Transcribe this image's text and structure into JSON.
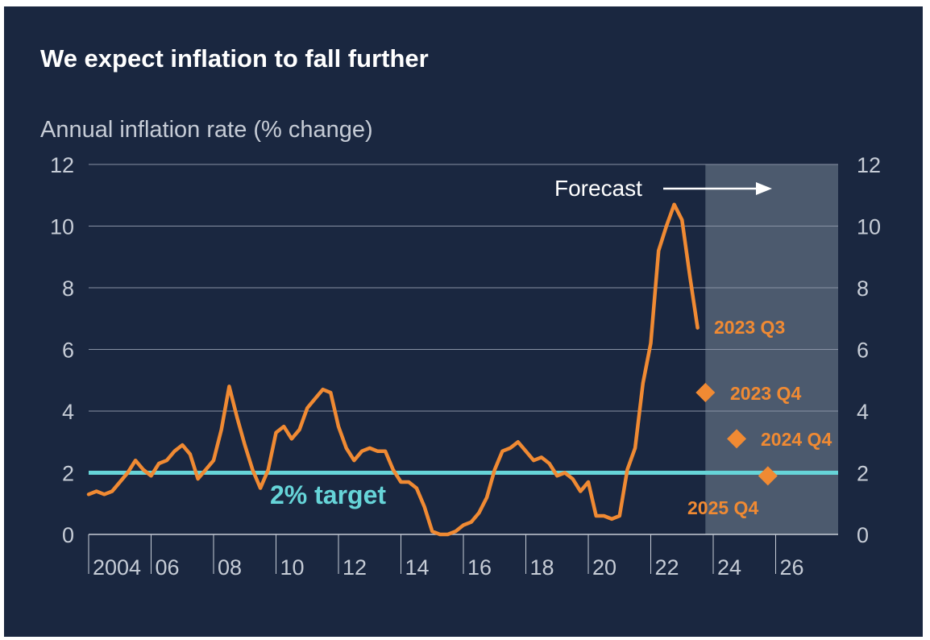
{
  "chart_data": {
    "type": "line",
    "title": "We expect inflation to fall further",
    "ylabel": "Annual inflation rate (% change)",
    "ylim": [
      0,
      12
    ],
    "yticks": [
      0,
      2,
      4,
      6,
      8,
      10,
      12
    ],
    "xlim": [
      2004,
      2028
    ],
    "xticks": [
      2004,
      2006,
      2008,
      2010,
      2012,
      2014,
      2016,
      2018,
      2020,
      2022,
      2024,
      2026
    ],
    "xtick_labels": [
      "2004",
      "06",
      "08",
      "10",
      "12",
      "14",
      "16",
      "18",
      "20",
      "22",
      "24",
      "26"
    ],
    "grid": true,
    "target": {
      "value": 2,
      "label": "2% target",
      "color": "#66d4d8"
    },
    "forecast_region": {
      "start": 2023.75,
      "end": 2028,
      "label": "Forecast"
    },
    "series": [
      {
        "color": "#f08a33",
        "x": [
          2004.0,
          2004.25,
          2004.5,
          2004.75,
          2005.0,
          2005.25,
          2005.5,
          2005.75,
          2006.0,
          2006.25,
          2006.5,
          2006.75,
          2007.0,
          2007.25,
          2007.5,
          2007.75,
          2008.0,
          2008.25,
          2008.5,
          2008.75,
          2009.0,
          2009.25,
          2009.5,
          2009.75,
          2010.0,
          2010.25,
          2010.5,
          2010.75,
          2011.0,
          2011.25,
          2011.5,
          2011.75,
          2012.0,
          2012.25,
          2012.5,
          2012.75,
          2013.0,
          2013.25,
          2013.5,
          2013.75,
          2014.0,
          2014.25,
          2014.5,
          2014.75,
          2015.0,
          2015.25,
          2015.5,
          2015.75,
          2016.0,
          2016.25,
          2016.5,
          2016.75,
          2017.0,
          2017.25,
          2017.5,
          2017.75,
          2018.0,
          2018.25,
          2018.5,
          2018.75,
          2019.0,
          2019.25,
          2019.5,
          2019.75,
          2020.0,
          2020.25,
          2020.5,
          2020.75,
          2021.0,
          2021.25,
          2021.5,
          2021.75,
          2022.0,
          2022.25,
          2022.5,
          2022.75,
          2023.0,
          2023.25,
          2023.5
        ],
        "values": [
          1.3,
          1.4,
          1.3,
          1.4,
          1.7,
          2.0,
          2.4,
          2.1,
          1.9,
          2.3,
          2.4,
          2.7,
          2.9,
          2.6,
          1.8,
          2.1,
          2.4,
          3.4,
          4.8,
          3.8,
          2.9,
          2.1,
          1.5,
          2.1,
          3.3,
          3.5,
          3.1,
          3.4,
          4.1,
          4.4,
          4.7,
          4.6,
          3.5,
          2.8,
          2.4,
          2.7,
          2.8,
          2.7,
          2.7,
          2.1,
          1.7,
          1.7,
          1.5,
          0.9,
          0.1,
          0.0,
          0.0,
          0.1,
          0.3,
          0.4,
          0.7,
          1.2,
          2.1,
          2.7,
          2.8,
          3.0,
          2.7,
          2.4,
          2.5,
          2.3,
          1.9,
          2.0,
          1.8,
          1.4,
          1.7,
          0.6,
          0.6,
          0.5,
          0.6,
          2.1,
          2.8,
          4.9,
          6.2,
          9.2,
          10.0,
          10.7,
          10.2,
          8.4,
          6.7
        ]
      }
    ],
    "forecast_points": [
      {
        "x": 2023.75,
        "value": 4.6,
        "label": "2023 Q4"
      },
      {
        "x": 2024.75,
        "value": 3.1,
        "label": "2024 Q4"
      },
      {
        "x": 2025.75,
        "value": 1.9,
        "label": "2025 Q4"
      }
    ],
    "annotations": [
      {
        "text": "2023 Q3",
        "x": 2023.5,
        "value": 6.7
      }
    ],
    "colors": {
      "background": "#1a2740",
      "grid": "#8892a4",
      "forecast_shade": "#4c5a6e"
    }
  }
}
